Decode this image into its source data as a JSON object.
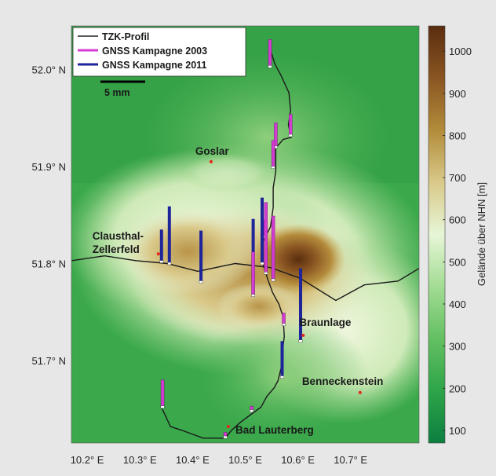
{
  "legend": {
    "items": [
      {
        "label": "TZK-Profil",
        "color": "#222222",
        "kind": "profile"
      },
      {
        "label": "GNSS Kampagne 2003",
        "color": "#d43cd4",
        "kind": "gnss2003"
      },
      {
        "label": "GNSS Kampagne 2011",
        "color": "#1e249a",
        "kind": "gnss2011"
      }
    ],
    "scale_label": "5 mm"
  },
  "axes": {
    "x_ticks": [
      {
        "lon": 10.2,
        "label": "10.2° E"
      },
      {
        "lon": 10.3,
        "label": "10.3° E"
      },
      {
        "lon": 10.4,
        "label": "10.4° E"
      },
      {
        "lon": 10.5,
        "label": "10.5° E"
      },
      {
        "lon": 10.6,
        "label": "10.6° E"
      },
      {
        "lon": 10.7,
        "label": "10.7° E"
      }
    ],
    "y_ticks": [
      {
        "lat": 52.0,
        "label": "52.0° N"
      },
      {
        "lat": 51.9,
        "label": "51.9° N"
      },
      {
        "lat": 51.8,
        "label": "51.8° N"
      },
      {
        "lat": 51.7,
        "label": "51.7° N"
      }
    ],
    "lon_range": [
      10.17,
      10.83
    ],
    "lat_range": [
      51.615,
      52.045
    ]
  },
  "colorbar": {
    "label": "Gelände über NHN [m]",
    "min": 70,
    "max": 1060,
    "ticks": [
      {
        "value": 100,
        "label": "100"
      },
      {
        "value": 200,
        "label": "200"
      },
      {
        "value": 300,
        "label": "300"
      },
      {
        "value": 400,
        "label": "400"
      },
      {
        "value": 500,
        "label": "500"
      },
      {
        "value": 600,
        "label": "600"
      },
      {
        "value": 700,
        "label": "700"
      },
      {
        "value": 800,
        "label": "800"
      },
      {
        "value": 900,
        "label": "900"
      },
      {
        "value": 1000,
        "label": "1000"
      }
    ],
    "colors": [
      "#0c7e3f",
      "#2ea54a",
      "#63c061",
      "#a3dc94",
      "#e6f6d6",
      "#d9c98a",
      "#b28c3a",
      "#8a5522",
      "#5a2d10"
    ]
  },
  "cities": [
    {
      "name": "Goslar",
      "lon": 10.435,
      "lat": 51.905
    },
    {
      "name": "Clausthal-",
      "name2": "Zellerfeld",
      "lon": 10.335,
      "lat": 51.81
    },
    {
      "name": "Braunlage",
      "lon": 10.61,
      "lat": 51.726
    },
    {
      "name": "Benneckenstein",
      "lon": 10.718,
      "lat": 51.667
    },
    {
      "name": "Bad Lauterberg",
      "lon": 10.468,
      "lat": 51.632
    }
  ],
  "profile_path": [
    [
      10.547,
      52.022
    ],
    [
      10.556,
      52.006
    ],
    [
      10.568,
      51.994
    ],
    [
      10.583,
      51.976
    ],
    [
      10.586,
      51.958
    ],
    [
      10.582,
      51.943
    ],
    [
      10.587,
      51.93
    ],
    [
      10.572,
      51.928
    ],
    [
      10.558,
      51.919
    ],
    [
      10.558,
      51.895
    ],
    [
      10.553,
      51.878
    ],
    [
      10.553,
      51.858
    ],
    [
      10.548,
      51.838
    ],
    [
      10.532,
      51.821
    ],
    [
      10.533,
      51.801
    ],
    [
      10.542,
      51.785
    ],
    [
      10.552,
      51.77
    ],
    [
      10.564,
      51.758
    ],
    [
      10.572,
      51.745
    ],
    [
      10.574,
      51.725
    ],
    [
      10.57,
      51.706
    ],
    [
      10.568,
      51.692
    ],
    [
      10.562,
      51.679
    ],
    [
      10.555,
      51.672
    ],
    [
      10.541,
      51.663
    ],
    [
      10.53,
      51.652
    ],
    [
      10.512,
      51.645
    ],
    [
      10.49,
      51.636
    ],
    [
      10.474,
      51.628
    ],
    [
      10.462,
      51.62
    ]
  ],
  "profile_branch": [
    [
      10.171,
      51.803
    ],
    [
      10.233,
      51.808
    ],
    [
      10.292,
      51.803
    ],
    [
      10.352,
      51.8
    ],
    [
      10.41,
      51.792
    ],
    [
      10.481,
      51.8
    ],
    [
      10.547,
      51.796
    ],
    [
      10.604,
      51.785
    ],
    [
      10.672,
      51.762
    ],
    [
      10.726,
      51.778
    ],
    [
      10.79,
      51.782
    ],
    [
      10.83,
      51.795
    ]
  ],
  "profile_branch2": [
    [
      10.34,
      51.653
    ],
    [
      10.358,
      51.632
    ],
    [
      10.38,
      51.628
    ],
    [
      10.42,
      51.62
    ],
    [
      10.462,
      51.62
    ]
  ],
  "stations": [
    {
      "lon": 10.547,
      "lat": 52.003,
      "v2003": 0.028,
      "v2011": 0.0
    },
    {
      "lon": 10.586,
      "lat": 51.932,
      "v2003": 0.022,
      "v2011": 0.0
    },
    {
      "lon": 10.558,
      "lat": 51.92,
      "v2003": 0.025,
      "v2011": 0.0
    },
    {
      "lon": 10.553,
      "lat": 51.899,
      "v2003": 0.028,
      "v2011": 0.0
    },
    {
      "lon": 10.535,
      "lat": 51.828,
      "v2003": 0.017,
      "v2011": 0.0
    },
    {
      "lon": 10.553,
      "lat": 51.783,
      "v2003": 0.066,
      "v2011": 0.037
    },
    {
      "lon": 10.341,
      "lat": 51.802,
      "v2003": 0.0,
      "v2011": 0.033
    },
    {
      "lon": 10.356,
      "lat": 51.8,
      "v2003": 0.0,
      "v2011": 0.059
    },
    {
      "lon": 10.416,
      "lat": 51.781,
      "v2003": 0.0,
      "v2011": 0.053
    },
    {
      "lon": 10.515,
      "lat": 51.767,
      "v2003": 0.045,
      "v2011": 0.079
    },
    {
      "lon": 10.532,
      "lat": 51.8,
      "v2003": 0.0,
      "v2011": 0.068
    },
    {
      "lon": 10.539,
      "lat": 51.79,
      "v2003": 0.073,
      "v2011": 0.0
    },
    {
      "lon": 10.573,
      "lat": 51.737,
      "v2003": 0.012,
      "v2011": 0.0
    },
    {
      "lon": 10.57,
      "lat": 51.683,
      "v2003": 0.0,
      "v2011": 0.037
    },
    {
      "lon": 10.605,
      "lat": 51.72,
      "v2003": 0.0,
      "v2011": 0.075
    },
    {
      "lon": 10.343,
      "lat": 51.652,
      "v2003": 0.028,
      "v2011": 0.0
    },
    {
      "lon": 10.512,
      "lat": 51.648,
      "v2003": 0.005,
      "v2011": 0.0
    },
    {
      "lon": 10.462,
      "lat": 51.621,
      "v2003": 0.005,
      "v2011": 0.0
    }
  ]
}
